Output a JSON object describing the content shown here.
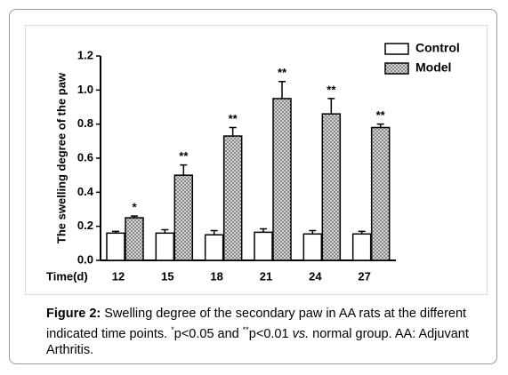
{
  "chart_data": {
    "type": "bar",
    "y_label": "The swelling degree of the paw",
    "x_label": "Time(d)",
    "categories": [
      "12",
      "15",
      "18",
      "21",
      "24",
      "27"
    ],
    "series": [
      {
        "name": "Control",
        "color": "#ffffff",
        "values": [
          0.16,
          0.16,
          0.15,
          0.165,
          0.155,
          0.155
        ],
        "errors": [
          0.01,
          0.02,
          0.025,
          0.02,
          0.02,
          0.015
        ]
      },
      {
        "name": "Model",
        "color": "crosshatch",
        "values": [
          0.25,
          0.5,
          0.73,
          0.95,
          0.86,
          0.78
        ],
        "errors": [
          0.01,
          0.06,
          0.05,
          0.1,
          0.09,
          0.02
        ]
      }
    ],
    "annotations": [
      "*",
      "**",
      "**",
      "**",
      "**",
      "**"
    ],
    "ylim": [
      0,
      1.2
    ],
    "yticks": [
      {
        "value": 0,
        "label": "0.0"
      },
      0.2,
      0.4,
      0.6,
      0.8,
      {
        "value": 1,
        "label": "1.0"
      },
      1.2
    ],
    "legend": "top-right"
  },
  "caption": {
    "label": "Figure 2:",
    "text1": "Swelling degree of the secondary paw in AA rats at the different indicated time points. ",
    "sup1": "*",
    "text2": "p<0.05 and ",
    "sup2": "**",
    "text3": "p<0.01 ",
    "italic": "vs.",
    "text4": " normal group. AA: Adjuvant Arthritis."
  }
}
